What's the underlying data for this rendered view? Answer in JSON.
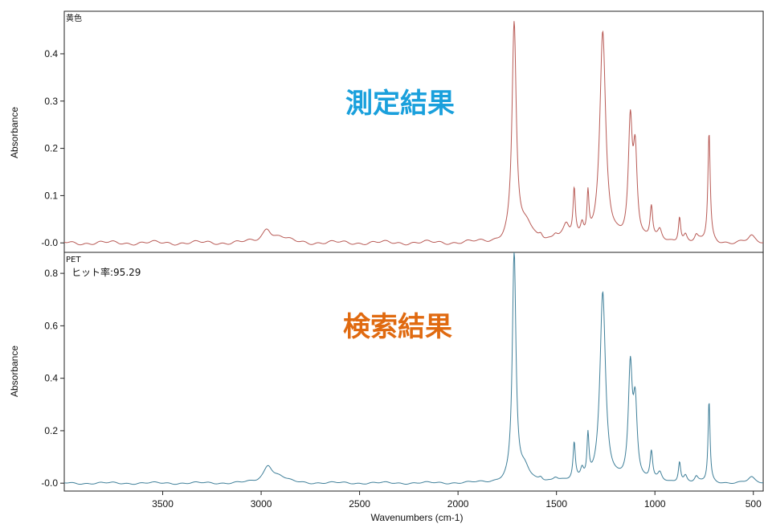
{
  "chart_data": [
    {
      "type": "line",
      "panel": "top",
      "corner_label": "黄色",
      "overlay_title": "測定結果",
      "overlay_color": "#1aa0dc",
      "line_color": "#b85a55",
      "ylabel": "Absorbance",
      "xlim": [
        4000,
        450
      ],
      "ylim": [
        -0.02,
        0.49
      ],
      "yticks": [
        {
          "value": 0.4,
          "label": "0.4"
        },
        {
          "value": 0.3,
          "label": "0.3"
        },
        {
          "value": 0.2,
          "label": "0.2"
        },
        {
          "value": 0.1,
          "label": "0.1"
        },
        {
          "value": 0.0,
          "label": "-0.0"
        }
      ],
      "series": [
        {
          "peaks": [
            {
              "x": 2970,
              "h": 0.03,
              "w": 28
            },
            {
              "x": 2900,
              "h": 0.01,
              "w": 40
            },
            {
              "x": 1715,
              "h": 0.46,
              "w": 13
            },
            {
              "x": 1650,
              "h": 0.035,
              "w": 35
            },
            {
              "x": 1580,
              "h": 0.012,
              "w": 12
            },
            {
              "x": 1505,
              "h": 0.012,
              "w": 15
            },
            {
              "x": 1450,
              "h": 0.03,
              "w": 18
            },
            {
              "x": 1410,
              "h": 0.1,
              "w": 7
            },
            {
              "x": 1370,
              "h": 0.03,
              "w": 10
            },
            {
              "x": 1340,
              "h": 0.088,
              "w": 6
            },
            {
              "x": 1265,
              "h": 0.44,
              "w": 18
            },
            {
              "x": 1125,
              "h": 0.24,
              "w": 12
            },
            {
              "x": 1100,
              "h": 0.18,
              "w": 12
            },
            {
              "x": 1018,
              "h": 0.07,
              "w": 8
            },
            {
              "x": 975,
              "h": 0.02,
              "w": 12
            },
            {
              "x": 875,
              "h": 0.055,
              "w": 7
            },
            {
              "x": 845,
              "h": 0.015,
              "w": 10
            },
            {
              "x": 790,
              "h": 0.012,
              "w": 10
            },
            {
              "x": 725,
              "h": 0.23,
              "w": 7
            },
            {
              "x": 510,
              "h": 0.012,
              "w": 20
            }
          ]
        }
      ]
    },
    {
      "type": "line",
      "panel": "bottom",
      "corner_label": "PET",
      "hit_label": "ヒット率:95.29",
      "overlay_title": "検索結果",
      "overlay_color": "#e06a10",
      "line_color": "#3f7f99",
      "ylabel": "Absorbance",
      "xlabel": "Wavenumbers (cm-1)",
      "xlim": [
        4000,
        450
      ],
      "ylim": [
        -0.03,
        0.88
      ],
      "yticks": [
        {
          "value": 0.8,
          "label": "0.8"
        },
        {
          "value": 0.6,
          "label": "0.6"
        },
        {
          "value": 0.4,
          "label": "0.4"
        },
        {
          "value": 0.2,
          "label": "0.2"
        },
        {
          "value": 0.0,
          "label": "-0.0"
        }
      ],
      "xticks": [
        {
          "value": 3500,
          "label": "3500"
        },
        {
          "value": 3000,
          "label": "3000"
        },
        {
          "value": 2500,
          "label": "2500"
        },
        {
          "value": 2000,
          "label": "2000"
        },
        {
          "value": 1500,
          "label": "1500"
        },
        {
          "value": 1000,
          "label": "1000"
        },
        {
          "value": 500,
          "label": "500"
        }
      ],
      "series": [
        {
          "peaks": [
            {
              "x": 2965,
              "h": 0.065,
              "w": 28
            },
            {
              "x": 2905,
              "h": 0.02,
              "w": 40
            },
            {
              "x": 1715,
              "h": 0.88,
              "w": 11
            },
            {
              "x": 1660,
              "h": 0.05,
              "w": 30
            },
            {
              "x": 1580,
              "h": 0.015,
              "w": 12
            },
            {
              "x": 1505,
              "h": 0.015,
              "w": 15
            },
            {
              "x": 1410,
              "h": 0.14,
              "w": 7
            },
            {
              "x": 1370,
              "h": 0.04,
              "w": 10
            },
            {
              "x": 1340,
              "h": 0.16,
              "w": 6
            },
            {
              "x": 1265,
              "h": 0.72,
              "w": 17
            },
            {
              "x": 1125,
              "h": 0.42,
              "w": 12
            },
            {
              "x": 1100,
              "h": 0.28,
              "w": 12
            },
            {
              "x": 1018,
              "h": 0.11,
              "w": 8
            },
            {
              "x": 975,
              "h": 0.03,
              "w": 12
            },
            {
              "x": 875,
              "h": 0.08,
              "w": 7
            },
            {
              "x": 845,
              "h": 0.025,
              "w": 10
            },
            {
              "x": 790,
              "h": 0.02,
              "w": 10
            },
            {
              "x": 725,
              "h": 0.31,
              "w": 6
            },
            {
              "x": 510,
              "h": 0.02,
              "w": 20
            }
          ]
        }
      ]
    }
  ]
}
